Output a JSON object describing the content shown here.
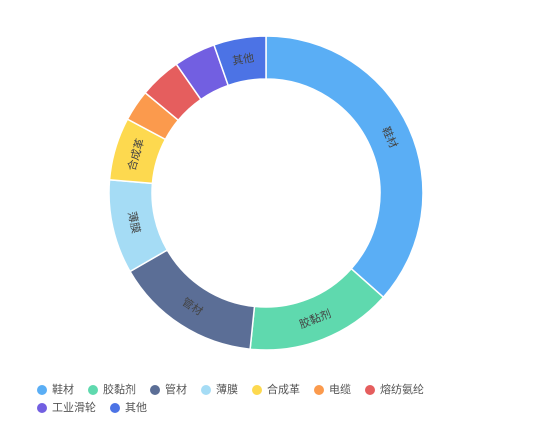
{
  "chart_data": {
    "type": "pie",
    "variant": "donut",
    "categories": [
      "鞋材",
      "胶黏剂",
      "管材",
      "薄膜",
      "合成革",
      "电缆",
      "熔纺氨纶",
      "工业滑轮",
      "其他"
    ],
    "values": [
      34,
      14,
      14,
      9,
      6,
      3,
      4,
      4,
      5
    ],
    "colors": [
      "#5aaef5",
      "#5fd9ae",
      "#5b6e96",
      "#a5dcf5",
      "#fdd94f",
      "#fb9a4d",
      "#e55e5e",
      "#725fe1",
      "#4c73e5"
    ],
    "slice_labels_shown": [
      "鞋材",
      "胶黏剂",
      "管材",
      "薄膜",
      "合成革",
      "其他"
    ],
    "legend_position": "bottom-left",
    "start_angle_deg": 90,
    "direction": "clockwise"
  }
}
